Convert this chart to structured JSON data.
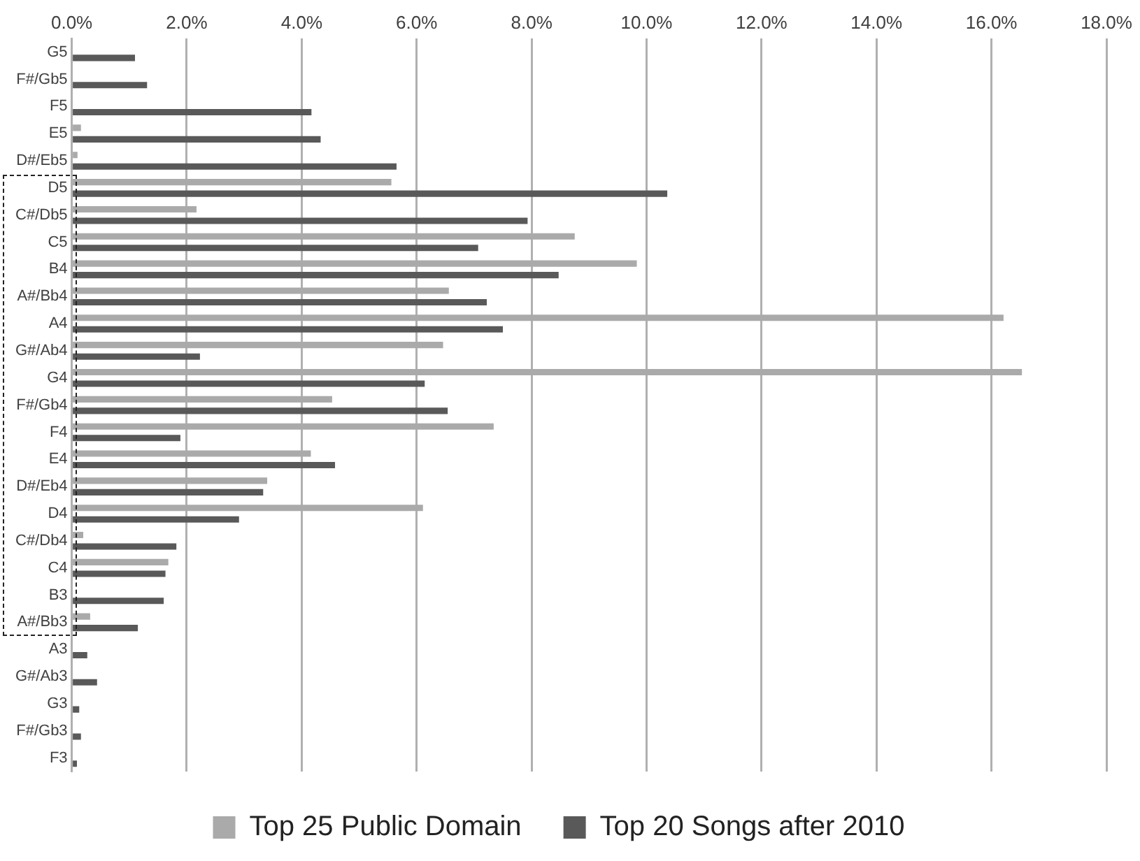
{
  "chart_data": {
    "type": "bar",
    "orientation": "horizontal",
    "categories": [
      "G5",
      "F#/Gb5",
      "F5",
      "E5",
      "D#/Eb5",
      "D5",
      "C#/Db5",
      "C5",
      "B4",
      "A#/Bb4",
      "A4",
      "G#/Ab4",
      "G4",
      "F#/Gb4",
      "F4",
      "E4",
      "D#/Eb4",
      "D4",
      "C#/Db4",
      "C4",
      "B3",
      "A#/Bb3",
      "A3",
      "G#/Ab3",
      "G3",
      "F#/Gb3",
      "F3"
    ],
    "series": [
      {
        "name": "Top 25 Public Domain",
        "color": "#aaaaaa",
        "values": [
          null,
          null,
          null,
          0.16,
          0.1,
          5.56,
          2.17,
          8.75,
          9.83,
          6.56,
          16.21,
          6.46,
          16.53,
          4.53,
          7.34,
          4.16,
          3.4,
          6.11,
          0.2,
          1.68,
          null,
          0.32,
          null,
          null,
          null,
          null,
          null
        ]
      },
      {
        "name": "Top 20 Songs after 2010",
        "color": "#595959",
        "values": [
          1.1,
          1.31,
          4.17,
          4.33,
          5.65,
          10.36,
          7.93,
          7.07,
          8.47,
          7.22,
          7.5,
          2.23,
          6.14,
          6.54,
          1.89,
          4.58,
          3.33,
          2.91,
          1.82,
          1.63,
          1.6,
          1.15,
          0.27,
          0.44,
          0.13,
          0.16,
          0.09
        ]
      }
    ],
    "xlim": [
      0,
      18
    ],
    "xticks": [
      {
        "value": 0,
        "label": "0.0%"
      },
      {
        "value": 2,
        "label": "2.0%"
      },
      {
        "value": 4,
        "label": "4.0%"
      },
      {
        "value": 6,
        "label": "6.0%"
      },
      {
        "value": 8,
        "label": "8.0%"
      },
      {
        "value": 10,
        "label": "10.0%"
      },
      {
        "value": 12,
        "label": "12.0%"
      },
      {
        "value": 14,
        "label": "14.0%"
      },
      {
        "value": 16,
        "label": "16.0%"
      },
      {
        "value": 18,
        "label": "18.0%"
      }
    ],
    "grid": "x",
    "legend": "bottom"
  }
}
